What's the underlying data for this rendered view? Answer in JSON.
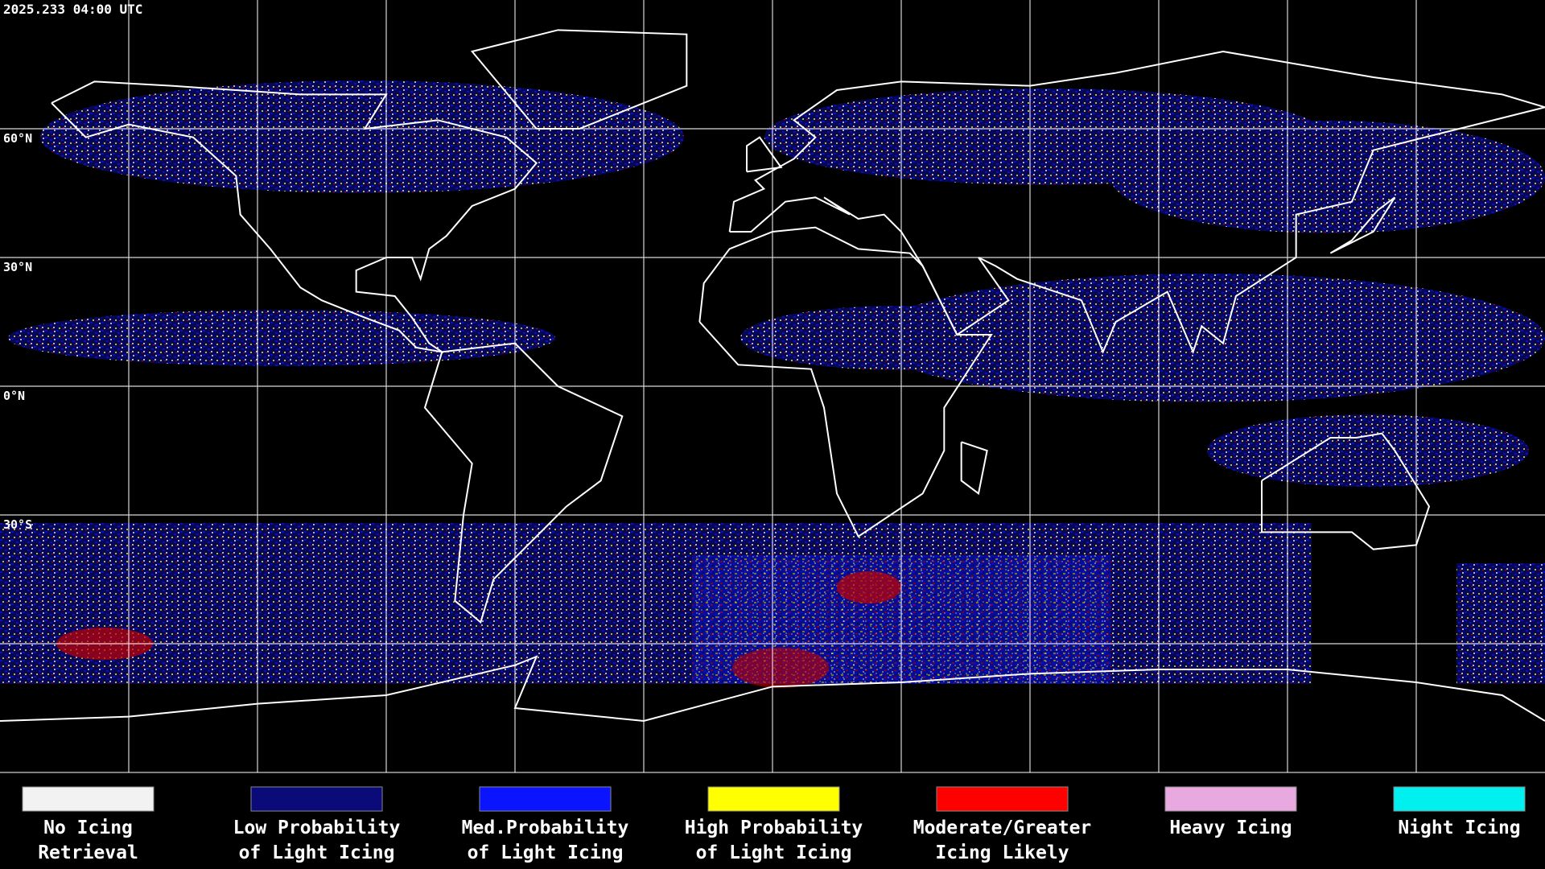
{
  "header": {
    "timestamp": "2025.233 04:00 UTC"
  },
  "map": {
    "lat_labels": [
      "60°N",
      "30°N",
      "0°N",
      "30°S"
    ]
  },
  "legend": {
    "items": [
      {
        "label": [
          "No Icing",
          "Retrieval"
        ],
        "color": "#f2f2f2"
      },
      {
        "label": [
          "Low Probability",
          "of Light Icing"
        ],
        "color": "#0a0a78"
      },
      {
        "label": [
          "Med.Probability",
          "of Light Icing"
        ],
        "color": "#0a14ff"
      },
      {
        "label": [
          "High Probability",
          "of Light Icing"
        ],
        "color": "#ffff00"
      },
      {
        "label": [
          "Moderate/Greater",
          "Icing Likely"
        ],
        "color": "#ff0000"
      },
      {
        "label": [
          "Heavy Icing"
        ],
        "color": "#e8a8e0"
      },
      {
        "label": [
          "Night Icing"
        ],
        "color": "#00f0f0"
      }
    ]
  }
}
